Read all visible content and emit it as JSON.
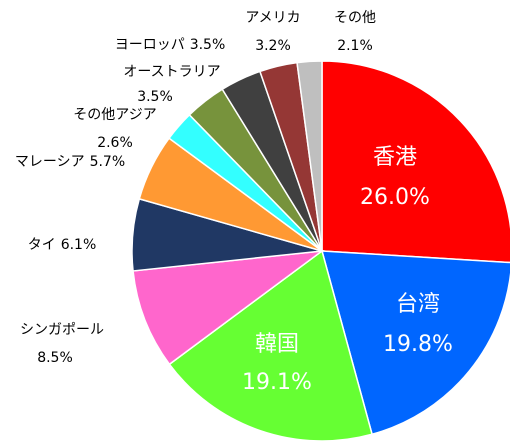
{
  "chart_data": {
    "type": "pie",
    "categories": [
      "香港",
      "台湾",
      "韓国",
      "シンガポール",
      "タイ",
      "マレーシア",
      "その他アジア",
      "オーストラリア",
      "ヨーロッパ",
      "アメリカ",
      "その他"
    ],
    "values": [
      26.0,
      19.8,
      19.1,
      8.5,
      6.1,
      5.7,
      2.6,
      3.5,
      3.5,
      3.2,
      2.1
    ],
    "value_labels": [
      "26.0%",
      "19.8%",
      "19.1%",
      "8.5%",
      "6.1%",
      "5.7%",
      "2.6%",
      "3.5%",
      "3.5%",
      "3.2%",
      "2.1%"
    ],
    "colors": [
      "#ff0000",
      "#0066ff",
      "#66ff33",
      "#ff66cc",
      "#203864",
      "#ff9933",
      "#33ffff",
      "#77933c",
      "#404040",
      "#953735",
      "#bfbfbf"
    ]
  }
}
